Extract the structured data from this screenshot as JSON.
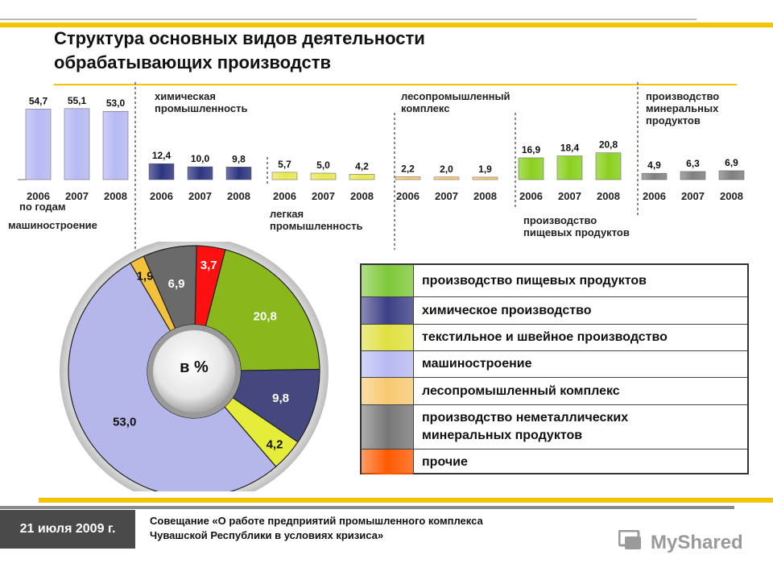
{
  "title": "Структура  основных видов деятельности\nобрабатывающих  производств",
  "bars_section_label": "по годам",
  "footer": {
    "date": "21 июля 2009 г.",
    "meeting": "Совещание «О работе предприятий промышленного комплекса\nЧувашской Республики в условиях кризиса»",
    "logo": "MyShared"
  },
  "colors": {
    "accent_yellow": "#f5c400",
    "food": "#7ec83a",
    "chemical": "#3b3f86",
    "textile": "#e0e040",
    "machine": "#b7b9f2",
    "timber": "#f7c870",
    "mineral": "#777777",
    "other": "#ff5a00"
  },
  "chart_data": [
    {
      "type": "bar",
      "categories": [
        "2006",
        "2007",
        "2008"
      ],
      "years": [
        "2006",
        "2007",
        "2008"
      ],
      "ylim": [
        0,
        60
      ],
      "groups": [
        {
          "label": "машиностроение",
          "values": [
            54.7,
            55.1,
            53.0
          ],
          "value_labels": [
            "54,7",
            "55,1",
            "53,0"
          ],
          "color": "#b7b9f2"
        },
        {
          "label": "химическая\nпромышленность",
          "values": [
            12.4,
            10.0,
            9.8
          ],
          "value_labels": [
            "12,4",
            "10,0",
            "9,8"
          ],
          "color": "#2e3580"
        },
        {
          "label": "легкая\nпромышленность",
          "values": [
            5.7,
            5.0,
            4.2
          ],
          "value_labels": [
            "5,7",
            "5,0",
            "4,2"
          ],
          "color": "#e8e850"
        },
        {
          "label": "лесопромышленный\n комплекс",
          "values": [
            2.2,
            2.0,
            1.9
          ],
          "value_labels": [
            "2,2",
            "2,0",
            "1,9"
          ],
          "color": "#f7c870"
        },
        {
          "label": "производство\nпищевых продуктов",
          "values": [
            16.9,
            18.4,
            20.8
          ],
          "value_labels": [
            "16,9",
            "18,4",
            "20,8"
          ],
          "color": "#8ad020"
        },
        {
          "label": "производство\nминеральных\nпродуктов",
          "values": [
            4.9,
            6.3,
            6.9
          ],
          "value_labels": [
            "4,9",
            "6,3",
            "6,9"
          ],
          "color": "#808080"
        }
      ]
    },
    {
      "type": "pie",
      "center_label": "в %",
      "labels": [
        "прочие",
        "производство пищевых продуктов",
        "химическое производство",
        "текстильное и швейное производство",
        "машиностроение",
        "лесопромышленный комплекс",
        "производство неметаллических минеральных продуктов"
      ],
      "values": [
        3.7,
        20.8,
        9.8,
        4.2,
        53.0,
        1.9,
        6.9
      ],
      "value_labels": [
        "3,7",
        "20,8",
        "9,8",
        "4,2",
        "53,0",
        "1,9",
        "6,9"
      ],
      "colors": [
        "#ff1010",
        "#8ab81c",
        "#45487e",
        "#e6ec3a",
        "#b5b6ea",
        "#f3c23a",
        "#6a6a6a"
      ]
    }
  ],
  "legend": [
    {
      "label": "производство пищевых продуктов",
      "color": "#7ec83a"
    },
    {
      "label": "химическое производство",
      "color": "#3b3f86"
    },
    {
      "label": "текстильное и швейное производство",
      "color": "#e0e040"
    },
    {
      "label": "машиностроение",
      "color": "#b7b9f2"
    },
    {
      "label": "лесопромышленный комплекс",
      "color": "#f7c870"
    },
    {
      "label": "производство неметаллических\nминеральных продуктов",
      "color": "#777777"
    },
    {
      "label": "прочие",
      "color": "#ff5a00"
    }
  ]
}
